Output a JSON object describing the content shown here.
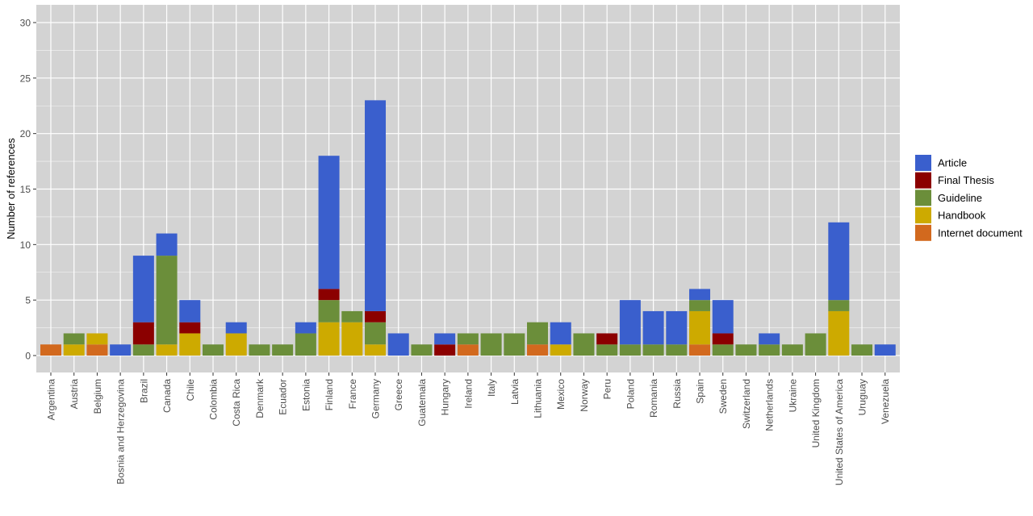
{
  "chart_data": {
    "type": "bar",
    "stacked": true,
    "title": "",
    "xlabel": "",
    "ylabel": "Number of references",
    "ylim": [
      0,
      31
    ],
    "yticks": [
      0,
      5,
      10,
      15,
      20,
      25,
      30
    ],
    "grid": true,
    "legend_position": "right",
    "categories": [
      "Argentina",
      "Austria",
      "Belgium",
      "Bosnia and Herzegovina",
      "Brazil",
      "Canada",
      "Chile",
      "Colombia",
      "Costa Rica",
      "Denmark",
      "Ecuador",
      "Estonia",
      "Finland",
      "France",
      "Germany",
      "Greece",
      "Guatemala",
      "Hungary",
      "Ireland",
      "Italy",
      "Latvia",
      "Lithuania",
      "Mexico",
      "Norway",
      "Peru",
      "Poland",
      "Romania",
      "Russia",
      "Spain",
      "Sweden",
      "Switzerland",
      "Netherlands",
      "Ukraine",
      "United Kingdom",
      "United States of America",
      "Uruguay",
      "Venezuela"
    ],
    "series": [
      {
        "name": "Internet document",
        "color": "#D2691E",
        "values": [
          1,
          0,
          1,
          0,
          0,
          0,
          0,
          0,
          0,
          0,
          0,
          0,
          0,
          0,
          0,
          0,
          0,
          0,
          1,
          0,
          0,
          1,
          0,
          0,
          0,
          0,
          0,
          0,
          1,
          0,
          0,
          0,
          0,
          0,
          0,
          0,
          0
        ]
      },
      {
        "name": "Handbook",
        "color": "#CDAA00",
        "values": [
          0,
          1,
          1,
          0,
          0,
          1,
          2,
          0,
          2,
          0,
          0,
          0,
          3,
          3,
          1,
          0,
          0,
          0,
          0,
          0,
          0,
          0,
          1,
          0,
          0,
          0,
          0,
          0,
          3,
          0,
          0,
          0,
          0,
          0,
          4,
          0,
          0
        ]
      },
      {
        "name": "Guideline",
        "color": "#6B8E3A",
        "values": [
          0,
          1,
          0,
          0,
          1,
          8,
          0,
          1,
          0,
          1,
          1,
          2,
          2,
          1,
          2,
          0,
          1,
          0,
          1,
          2,
          2,
          2,
          0,
          2,
          1,
          1,
          1,
          1,
          1,
          1,
          1,
          1,
          1,
          2,
          1,
          1,
          0
        ]
      },
      {
        "name": "Final Thesis",
        "color": "#8B0000",
        "values": [
          0,
          0,
          0,
          0,
          2,
          0,
          1,
          0,
          0,
          0,
          0,
          0,
          1,
          0,
          1,
          0,
          0,
          1,
          0,
          0,
          0,
          0,
          0,
          0,
          1,
          0,
          0,
          0,
          0,
          1,
          0,
          0,
          0,
          0,
          0,
          0,
          0
        ]
      },
      {
        "name": "Article",
        "color": "#3A5FCD",
        "values": [
          0,
          0,
          0,
          1,
          6,
          2,
          2,
          0,
          1,
          0,
          0,
          1,
          12,
          0,
          19,
          2,
          0,
          1,
          0,
          0,
          0,
          0,
          2,
          0,
          0,
          4,
          3,
          3,
          1,
          3,
          0,
          1,
          0,
          0,
          7,
          0,
          1
        ]
      }
    ],
    "legend_order": [
      "Article",
      "Final Thesis",
      "Guideline",
      "Handbook",
      "Internet document"
    ]
  },
  "colors": {
    "panel_background": "#D3D3D3",
    "grid_line": "#FFFFFF",
    "tick_label": "#4D4D4D"
  }
}
